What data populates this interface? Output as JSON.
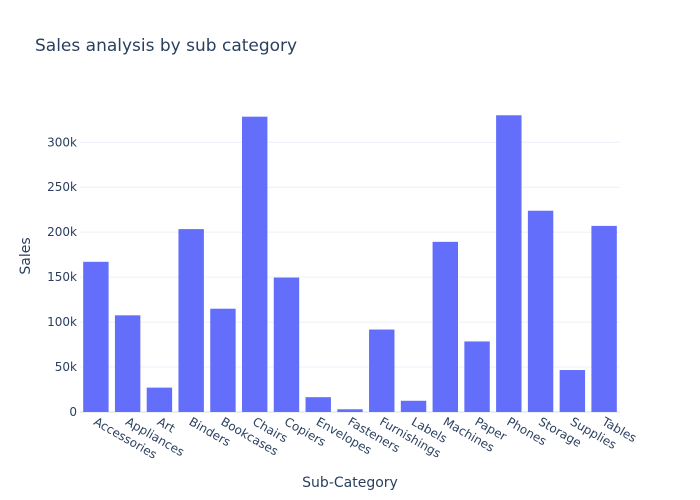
{
  "chart_data": {
    "type": "bar",
    "title": "Sales analysis by sub category",
    "xlabel": "Sub-Category",
    "ylabel": "Sales",
    "categories": [
      "Accessories",
      "Appliances",
      "Art",
      "Binders",
      "Bookcases",
      "Chairs",
      "Copiers",
      "Envelopes",
      "Fasteners",
      "Furnishings",
      "Labels",
      "Machines",
      "Paper",
      "Phones",
      "Storage",
      "Supplies",
      "Tables"
    ],
    "values": [
      167026,
      107532,
      27119,
      203413,
      114880,
      328449,
      149528,
      16476,
      3024,
      91705,
      12486,
      189239,
      78479,
      330007,
      223844,
      46674,
      206966
    ],
    "ylim": [
      0,
      347000
    ],
    "yticks": [
      0,
      50000,
      100000,
      150000,
      200000,
      250000,
      300000
    ],
    "ytick_labels": [
      "0",
      "50k",
      "100k",
      "150k",
      "200k",
      "250k",
      "300k"
    ],
    "bar_color": "#636efa",
    "grid": true,
    "legend": "none"
  }
}
